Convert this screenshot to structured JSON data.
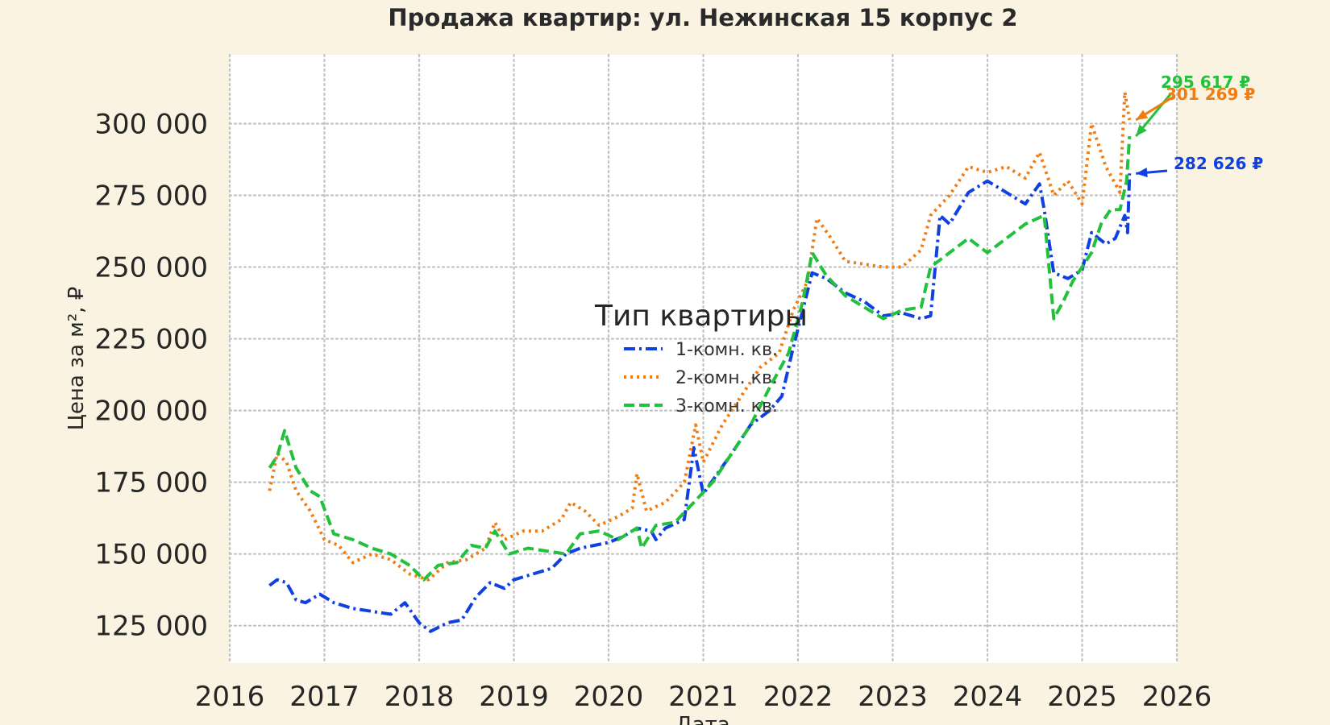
{
  "chart_data": {
    "type": "line",
    "title": "Продажа квартир: ул. Нежинская 15 корпус 2",
    "xlabel": "Дата",
    "ylabel": "Цена за м², ₽",
    "xlim": [
      2016.0,
      2026.0
    ],
    "ylim": [
      112000,
      324000
    ],
    "x_ticks": [
      "2016",
      "2017",
      "2018",
      "2019",
      "2020",
      "2021",
      "2022",
      "2023",
      "2024",
      "2025",
      "2026"
    ],
    "y_ticks": [
      125000,
      150000,
      175000,
      200000,
      225000,
      250000,
      275000,
      300000
    ],
    "y_tick_labels": [
      "125 000",
      "150 000",
      "175 000",
      "200 000",
      "225 000",
      "250 000",
      "275 000",
      "300 000"
    ],
    "grid": true,
    "legend": {
      "title": "Тип квартиры",
      "position": "center"
    },
    "series": [
      {
        "name": "1-комн. кв.",
        "color": "#1040e0",
        "dash": "dashdot",
        "x": [
          2016.42,
          2016.5,
          2016.6,
          2016.7,
          2016.8,
          2016.95,
          2017.1,
          2017.3,
          2017.5,
          2017.7,
          2017.85,
          2018.0,
          2018.12,
          2018.3,
          2018.45,
          2018.6,
          2018.75,
          2018.9,
          2019.0,
          2019.2,
          2019.4,
          2019.55,
          2019.7,
          2019.85,
          2020.0,
          2020.15,
          2020.3,
          2020.45,
          2020.5,
          2020.6,
          2020.8,
          2020.9,
          2021.0,
          2021.15,
          2021.3,
          2021.5,
          2021.7,
          2021.83,
          2021.95,
          2022.05,
          2022.15,
          2022.3,
          2022.5,
          2022.7,
          2022.9,
          2023.1,
          2023.3,
          2023.4,
          2023.5,
          2023.6,
          2023.8,
          2024.0,
          2024.2,
          2024.4,
          2024.55,
          2024.6,
          2024.7,
          2024.85,
          2025.0,
          2025.1,
          2025.25,
          2025.35,
          2025.45,
          2025.48,
          2025.5
        ],
        "y": [
          139000,
          141000,
          140000,
          134000,
          133000,
          136000,
          133000,
          131000,
          130000,
          129000,
          133000,
          126000,
          123000,
          126000,
          127000,
          135000,
          140000,
          138000,
          141000,
          143000,
          145000,
          150000,
          152000,
          153000,
          154000,
          156000,
          159000,
          158000,
          155000,
          159000,
          162000,
          187000,
          171000,
          178000,
          185000,
          195000,
          200000,
          205000,
          222000,
          235000,
          248000,
          246000,
          241000,
          238000,
          233000,
          234000,
          232000,
          233000,
          268000,
          265000,
          276000,
          280000,
          276000,
          272000,
          279000,
          270000,
          248000,
          246000,
          249000,
          262000,
          258000,
          260000,
          268000,
          262000,
          282626
        ]
      },
      {
        "name": "2-комн. кв.",
        "color": "#f07c12",
        "dash": "dotted",
        "x": [
          2016.42,
          2016.5,
          2016.6,
          2016.7,
          2016.85,
          2017.0,
          2017.15,
          2017.3,
          2017.5,
          2017.7,
          2017.9,
          2018.1,
          2018.3,
          2018.5,
          2018.7,
          2018.8,
          2018.9,
          2019.1,
          2019.3,
          2019.5,
          2019.6,
          2019.75,
          2019.9,
          2020.1,
          2020.25,
          2020.3,
          2020.4,
          2020.6,
          2020.8,
          2020.92,
          2021.0,
          2021.2,
          2021.4,
          2021.6,
          2021.8,
          2021.95,
          2022.1,
          2022.2,
          2022.35,
          2022.5,
          2022.7,
          2022.9,
          2023.1,
          2023.3,
          2023.4,
          2023.6,
          2023.8,
          2024.0,
          2024.2,
          2024.4,
          2024.55,
          2024.7,
          2024.85,
          2025.0,
          2025.1,
          2025.25,
          2025.4,
          2025.45,
          2025.5
        ],
        "y": [
          172000,
          185000,
          182000,
          172000,
          165000,
          155000,
          153000,
          147000,
          150000,
          148000,
          143000,
          141000,
          147000,
          148000,
          152000,
          161000,
          155000,
          158000,
          158000,
          162000,
          168000,
          165000,
          160000,
          163000,
          166000,
          178000,
          165000,
          168000,
          175000,
          195000,
          182000,
          195000,
          205000,
          215000,
          220000,
          235000,
          245000,
          267000,
          260000,
          252000,
          251000,
          250000,
          250000,
          256000,
          268000,
          275000,
          285000,
          283000,
          285000,
          281000,
          290000,
          275000,
          280000,
          272000,
          300000,
          285000,
          276000,
          311000,
          301269
        ]
      },
      {
        "name": "3-комн. кв.",
        "color": "#22c03c",
        "dash": "dashed",
        "x": [
          2016.42,
          2016.5,
          2016.58,
          2016.7,
          2016.85,
          2016.95,
          2017.1,
          2017.3,
          2017.5,
          2017.7,
          2017.9,
          2018.05,
          2018.2,
          2018.4,
          2018.55,
          2018.7,
          2018.8,
          2018.95,
          2019.15,
          2019.35,
          2019.55,
          2019.7,
          2019.9,
          2020.1,
          2020.3,
          2020.35,
          2020.5,
          2020.7,
          2020.9,
          2021.1,
          2021.3,
          2021.5,
          2021.7,
          2021.9,
          2022.05,
          2022.15,
          2022.3,
          2022.5,
          2022.7,
          2022.9,
          2023.1,
          2023.3,
          2023.4,
          2023.6,
          2023.8,
          2024.0,
          2024.2,
          2024.4,
          2024.6,
          2024.7,
          2024.8,
          2024.9,
          2025.0,
          2025.1,
          2025.2,
          2025.3,
          2025.4,
          2025.47,
          2025.5
        ],
        "y": [
          180000,
          184000,
          193000,
          180000,
          172000,
          170000,
          157000,
          155000,
          152000,
          150000,
          146000,
          141000,
          146000,
          147000,
          153000,
          152000,
          158000,
          150000,
          152000,
          151000,
          150000,
          157000,
          158000,
          155000,
          159000,
          152000,
          160000,
          161000,
          168000,
          175000,
          185000,
          195000,
          208000,
          220000,
          238000,
          255000,
          247000,
          240000,
          236000,
          232000,
          235000,
          236000,
          250000,
          255000,
          260000,
          255000,
          260000,
          265000,
          268000,
          232000,
          238000,
          245000,
          250000,
          255000,
          265000,
          270000,
          270000,
          280000,
          295617
        ]
      }
    ],
    "annotations": [
      {
        "text": "295 617 ₽",
        "series": "3-комн. кв."
      },
      {
        "text": "301 269 ₽",
        "series": "2-комн. кв."
      },
      {
        "text": "282 626 ₽",
        "series": "1-комн. кв."
      }
    ]
  }
}
